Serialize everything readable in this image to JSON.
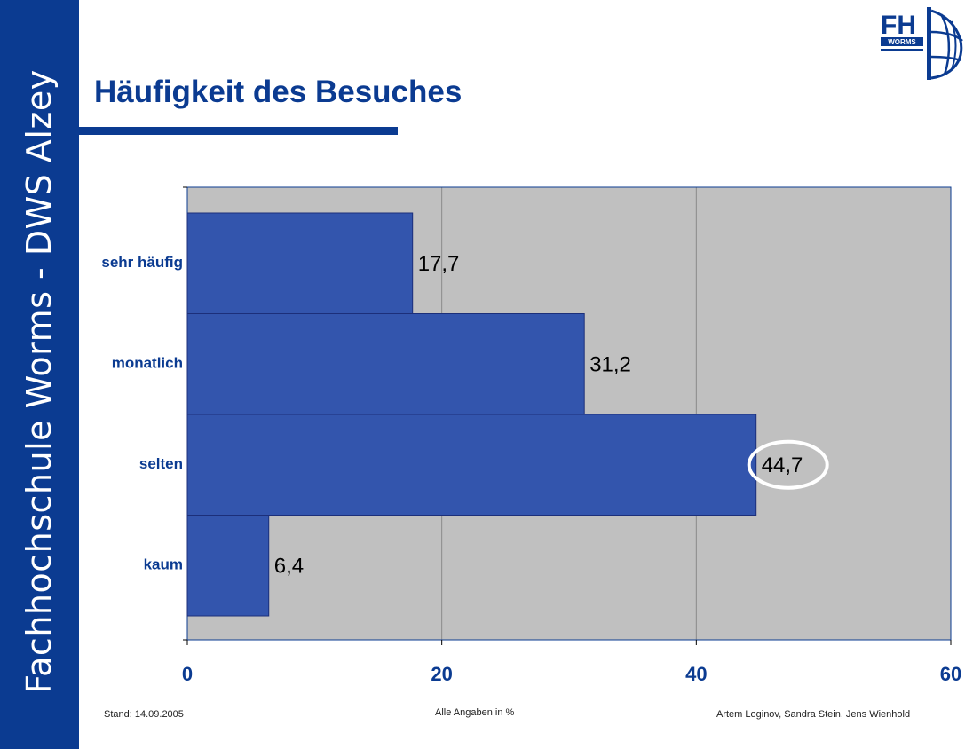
{
  "sidebar": {
    "institution": "Fachhochschule Worms - DWS Alzey"
  },
  "header": {
    "title": "Häufigkeit des Besuches"
  },
  "logo": {
    "text_main": "FH",
    "text_sub": "WORMS"
  },
  "footer": {
    "date": "Stand: 14.09.2005",
    "note": "Alle Angaben in %",
    "authors": "Artem Loginov, Sandra Stein, Jens Wienhold"
  },
  "colors": {
    "brand": "#0b3b91",
    "bar": "#3355ad",
    "plot_bg": "#c0c0c0",
    "highlight_ring": "#ffffff"
  },
  "chart_data": {
    "type": "bar",
    "orientation": "horizontal",
    "categories": [
      "sehr häufig",
      "monatlich",
      "selten",
      "kaum"
    ],
    "values": [
      17.7,
      31.2,
      44.7,
      6.4
    ],
    "value_labels": [
      "17,7",
      "31,2",
      "44,7",
      "6,4"
    ],
    "xlim": [
      0,
      60
    ],
    "xticks": [
      0,
      20,
      40,
      60
    ],
    "grid": "vertical",
    "highlight_index": 2
  }
}
